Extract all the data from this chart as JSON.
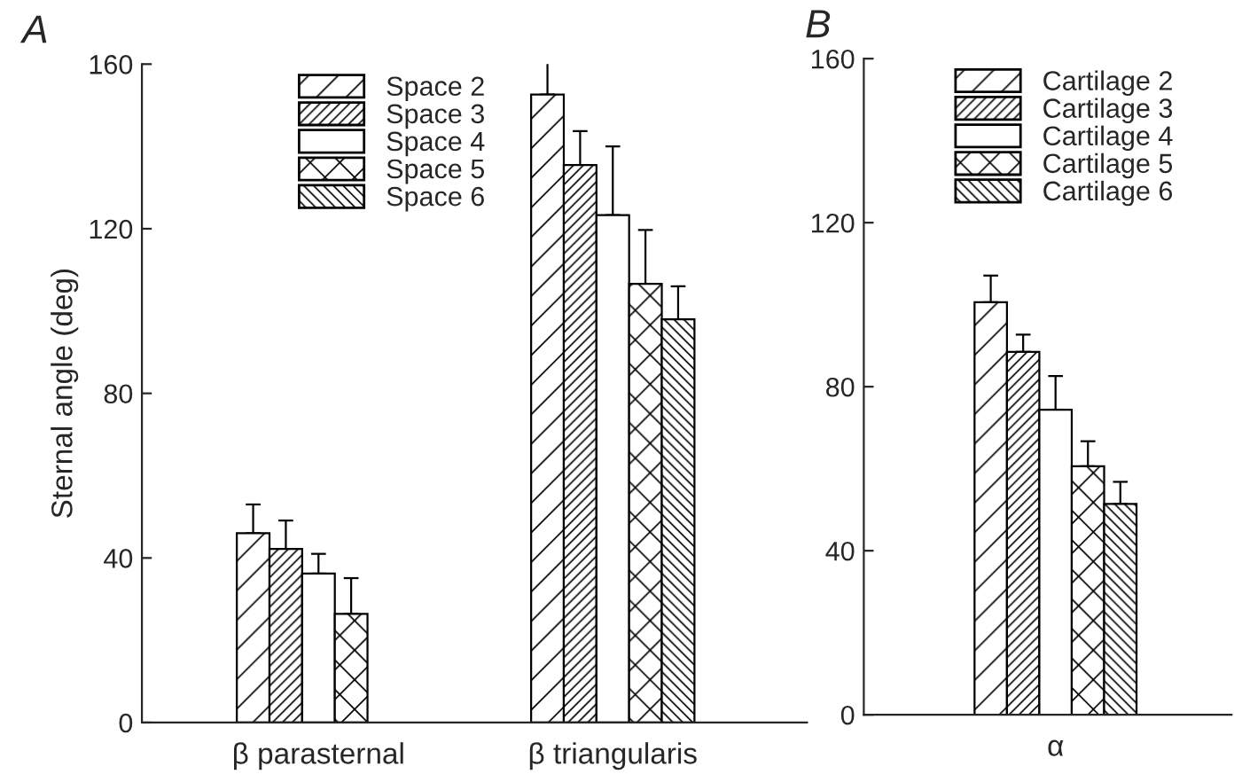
{
  "chart_data": [
    {
      "type": "bar",
      "title": "A",
      "ylabel": "Sternal angle (deg)",
      "categories": [
        "β parasternal",
        "β triangularis"
      ],
      "series": [
        {
          "name": "Space 2",
          "color": "#000000",
          "values": [
            46.0,
            152.6
          ],
          "errors": [
            [
              46.0,
              53.0
            ],
            [
              152.6,
              160.5
            ]
          ]
        },
        {
          "name": "Space 3",
          "color": "#000000",
          "values": [
            42.2,
            135.5
          ],
          "errors": [
            [
              42.2,
              49.1
            ],
            [
              135.5,
              143.7
            ]
          ]
        },
        {
          "name": "Space 4",
          "color": "#ffffff",
          "values": [
            36.2,
            123.3
          ],
          "errors": [
            [
              36.2,
              41.0
            ],
            [
              123.3,
              140.0
            ]
          ]
        },
        {
          "name": "Space 5",
          "color": "#000000",
          "values": [
            26.4,
            106.6
          ],
          "errors": [
            [
              26.4,
              35.1
            ],
            [
              106.6,
              119.7
            ]
          ]
        },
        {
          "name": "Space 6",
          "color": "#000000",
          "values": [
            null,
            98.0
          ],
          "errors": [
            null,
            [
              98.0,
              106.0
            ]
          ]
        }
      ],
      "ylim": [
        0,
        160
      ],
      "yticks": [
        0,
        40,
        80,
        120,
        160
      ],
      "legend": "top left",
      "grid": false
    },
    {
      "type": "bar",
      "title": "B",
      "categories": [
        "α"
      ],
      "series": [
        {
          "name": "Cartilage 2",
          "color": "#000000",
          "values": [
            100.6
          ],
          "errors": [
            [
              100.6,
              107.1
            ]
          ]
        },
        {
          "name": "Cartilage 3",
          "color": "#000000",
          "values": [
            88.5
          ],
          "errors": [
            [
              88.5,
              92.7
            ]
          ]
        },
        {
          "name": "Cartilage 4",
          "color": "#ffffff",
          "values": [
            74.4
          ],
          "errors": [
            [
              74.4,
              82.6
            ]
          ]
        },
        {
          "name": "Cartilage 5",
          "color": "#000000",
          "values": [
            60.6
          ],
          "errors": [
            [
              60.6,
              66.7
            ]
          ]
        },
        {
          "name": "Cartilage 6",
          "color": "#000000",
          "values": [
            51.4
          ],
          "errors": [
            [
              51.4,
              56.8
            ]
          ]
        }
      ],
      "ylim": [
        0,
        160
      ],
      "yticks": [
        0,
        40,
        80,
        120,
        160
      ],
      "legend": "top left",
      "grid": false
    }
  ]
}
